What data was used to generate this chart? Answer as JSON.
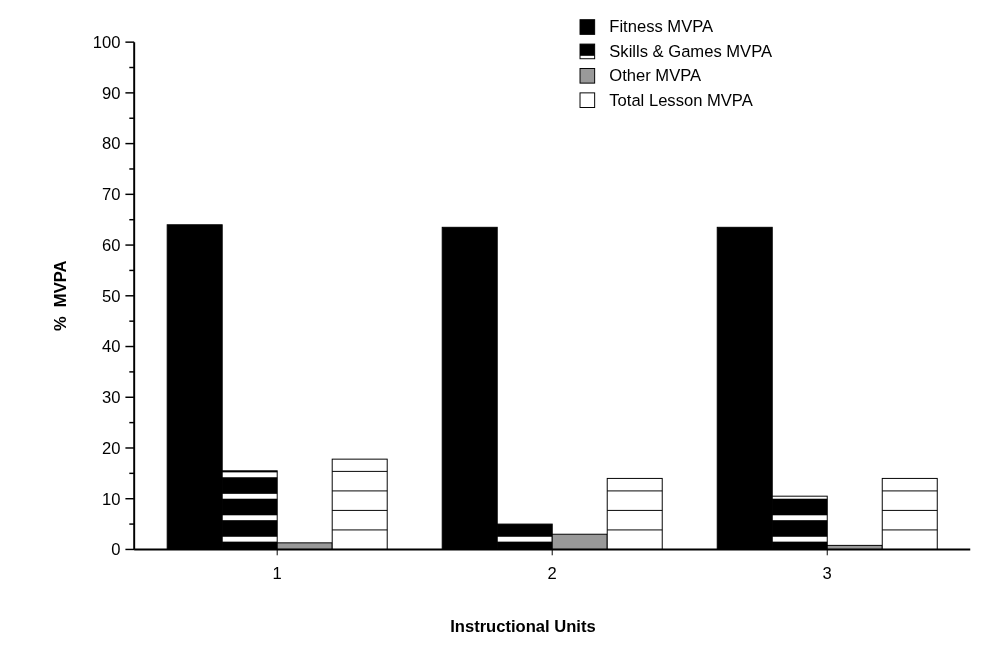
{
  "chart_data": {
    "type": "bar",
    "xlabel": "Instructional Units",
    "ylabel": "%  MVPA",
    "categories": [
      "1",
      "2",
      "3"
    ],
    "series": [
      {
        "name": "Fitness MVPA",
        "color": "#000000",
        "values": [
          64,
          63.5,
          63.5
        ]
      },
      {
        "name": "Skills & Games MVPA",
        "color": "#000000",
        "values": [
          15.5,
          5,
          10.5
        ]
      },
      {
        "name": "Other MVPA",
        "color": "#999999",
        "values": [
          1.3,
          3,
          0.8
        ]
      },
      {
        "name": "Total Lesson MVPA",
        "color": "#ffffff",
        "values": [
          17.8,
          14,
          14
        ]
      }
    ],
    "ylim": [
      0,
      100
    ],
    "yticks": [
      0,
      {
        "value": 5,
        "label": null
      },
      10,
      {
        "value": 15,
        "label": null
      },
      20,
      {
        "value": 25,
        "label": null
      },
      30,
      {
        "value": 35,
        "label": null
      },
      40,
      {
        "value": 45,
        "label": null
      },
      50,
      {
        "value": 55,
        "label": null
      },
      60,
      {
        "value": 65,
        "label": null
      },
      70,
      {
        "value": 75,
        "label": null
      },
      80,
      {
        "value": 85,
        "label": null
      },
      90,
      {
        "value": 95,
        "label": null
      },
      100
    ],
    "legend": "top right"
  }
}
